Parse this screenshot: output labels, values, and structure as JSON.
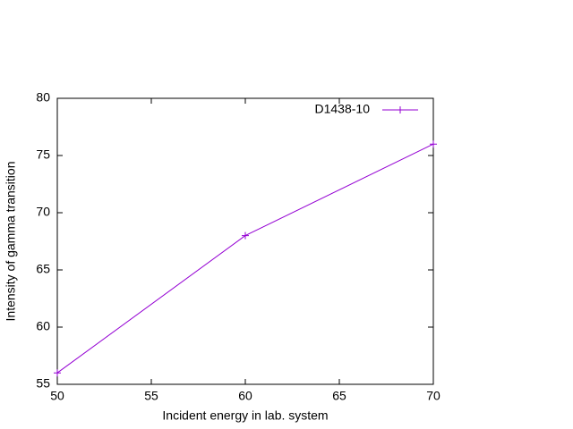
{
  "chart_data": {
    "type": "line",
    "x_label": "Incident energy in lab. system",
    "y_label": "Intensity of gamma transition",
    "x": [
      50,
      60,
      70
    ],
    "series": [
      {
        "name": "D1438-10",
        "color": "#9400d3",
        "values": [
          56,
          68,
          76
        ]
      }
    ],
    "xlim": [
      50,
      70
    ],
    "xticks": [
      50,
      55,
      60,
      65,
      70
    ],
    "ylim": [
      55,
      80
    ],
    "yticks": [
      55,
      60,
      65,
      70,
      75,
      80
    ],
    "grid": false,
    "legend": "top-right"
  }
}
